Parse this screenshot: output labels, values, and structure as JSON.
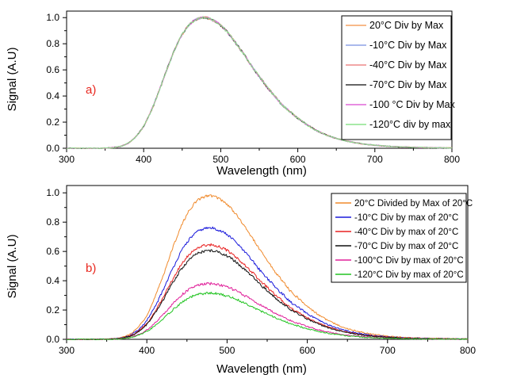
{
  "chart_data": [
    {
      "type": "line",
      "panel_label": "a)",
      "xlabel": "Wavelength (nm)",
      "ylabel": "Signal (A.U)",
      "xlim": [
        300,
        800
      ],
      "ylim": [
        0,
        1.05
      ],
      "xticks": [
        "300",
        "400",
        "500",
        "600",
        "700",
        "800"
      ],
      "yticks": [
        "0.0",
        "0.2",
        "0.4",
        "0.6",
        "0.8",
        "1.0"
      ],
      "grid": false,
      "legend_position": "top-right",
      "x": [
        300,
        340,
        360,
        370,
        380,
        390,
        400,
        410,
        420,
        430,
        440,
        450,
        460,
        470,
        480,
        490,
        500,
        510,
        520,
        530,
        540,
        550,
        560,
        570,
        580,
        590,
        600,
        620,
        640,
        660,
        680,
        700,
        720,
        740,
        760,
        780,
        800
      ],
      "series": [
        {
          "name": "20°C Div by Max",
          "color": "#f5a262",
          "values": [
            0,
            0,
            0.005,
            0.015,
            0.04,
            0.09,
            0.17,
            0.29,
            0.44,
            0.6,
            0.75,
            0.87,
            0.95,
            0.99,
            1.0,
            0.98,
            0.94,
            0.88,
            0.8,
            0.72,
            0.63,
            0.55,
            0.47,
            0.4,
            0.33,
            0.28,
            0.23,
            0.15,
            0.095,
            0.06,
            0.037,
            0.023,
            0.014,
            0.009,
            0.006,
            0.004,
            0.003
          ]
        },
        {
          "name": "-10°C Div by Max",
          "color": "#8ea2e6",
          "values": [
            0,
            0,
            0.005,
            0.015,
            0.04,
            0.09,
            0.17,
            0.29,
            0.44,
            0.6,
            0.75,
            0.87,
            0.95,
            0.99,
            1.0,
            0.98,
            0.94,
            0.88,
            0.8,
            0.72,
            0.63,
            0.55,
            0.47,
            0.4,
            0.33,
            0.28,
            0.23,
            0.15,
            0.095,
            0.06,
            0.037,
            0.023,
            0.014,
            0.009,
            0.006,
            0.004,
            0.003
          ]
        },
        {
          "name": "-40°C Div by Max",
          "color": "#ee8a8a",
          "values": [
            0,
            0,
            0.005,
            0.015,
            0.04,
            0.09,
            0.17,
            0.29,
            0.44,
            0.6,
            0.75,
            0.87,
            0.95,
            0.99,
            1.0,
            0.98,
            0.94,
            0.88,
            0.8,
            0.72,
            0.63,
            0.55,
            0.47,
            0.4,
            0.33,
            0.28,
            0.23,
            0.15,
            0.095,
            0.06,
            0.037,
            0.023,
            0.014,
            0.009,
            0.006,
            0.004,
            0.003
          ]
        },
        {
          "name": "-70°C Div by Max",
          "color": "#333333",
          "values": [
            0,
            0,
            0.005,
            0.015,
            0.04,
            0.09,
            0.17,
            0.29,
            0.44,
            0.6,
            0.75,
            0.87,
            0.95,
            0.99,
            1.0,
            0.98,
            0.94,
            0.88,
            0.8,
            0.72,
            0.63,
            0.55,
            0.47,
            0.4,
            0.33,
            0.28,
            0.23,
            0.15,
            0.095,
            0.06,
            0.037,
            0.023,
            0.014,
            0.009,
            0.006,
            0.004,
            0.003
          ]
        },
        {
          "name": "-100 °C Div by Max",
          "color": "#e066d8",
          "values": [
            0,
            0,
            0.005,
            0.015,
            0.04,
            0.09,
            0.17,
            0.29,
            0.44,
            0.6,
            0.75,
            0.87,
            0.95,
            0.99,
            1.0,
            0.98,
            0.94,
            0.88,
            0.8,
            0.72,
            0.63,
            0.55,
            0.47,
            0.4,
            0.33,
            0.28,
            0.23,
            0.15,
            0.095,
            0.06,
            0.037,
            0.023,
            0.014,
            0.009,
            0.006,
            0.004,
            0.003
          ]
        },
        {
          "name": "-120°C div by max",
          "color": "#8be38b",
          "values": [
            0,
            0,
            0.005,
            0.015,
            0.04,
            0.09,
            0.17,
            0.29,
            0.44,
            0.6,
            0.75,
            0.87,
            0.95,
            0.99,
            1.0,
            0.98,
            0.94,
            0.88,
            0.8,
            0.72,
            0.63,
            0.55,
            0.47,
            0.4,
            0.33,
            0.28,
            0.23,
            0.15,
            0.095,
            0.06,
            0.037,
            0.023,
            0.014,
            0.009,
            0.006,
            0.004,
            0.003
          ]
        }
      ]
    },
    {
      "type": "line",
      "panel_label": "b)",
      "xlabel": "Wavelength (nm)",
      "ylabel": "Signal (A.U)",
      "xlim": [
        300,
        800
      ],
      "ylim": [
        0,
        1.05
      ],
      "xticks": [
        "300",
        "400",
        "500",
        "600",
        "700",
        "800"
      ],
      "yticks": [
        "0.0",
        "0.2",
        "0.4",
        "0.6",
        "0.8",
        "1.0"
      ],
      "grid": false,
      "legend_position": "top-right",
      "x": [
        300,
        340,
        360,
        370,
        380,
        390,
        400,
        410,
        420,
        430,
        440,
        450,
        460,
        470,
        480,
        490,
        500,
        510,
        520,
        530,
        540,
        550,
        560,
        570,
        580,
        590,
        600,
        620,
        640,
        660,
        680,
        700,
        720,
        740,
        760,
        780,
        800
      ],
      "series": [
        {
          "name": "20°C Divided by Max of 20°C",
          "color": "#f08a2c",
          "scale": 0.98,
          "values": [
            0,
            0,
            0.005,
            0.015,
            0.04,
            0.09,
            0.17,
            0.29,
            0.44,
            0.6,
            0.75,
            0.87,
            0.95,
            0.99,
            1.0,
            0.98,
            0.94,
            0.88,
            0.8,
            0.72,
            0.63,
            0.55,
            0.47,
            0.4,
            0.33,
            0.28,
            0.23,
            0.15,
            0.095,
            0.06,
            0.037,
            0.023,
            0.014,
            0.009,
            0.006,
            0.004,
            0.003
          ]
        },
        {
          "name": "-10°C Div by max of 20°C",
          "color": "#1a1adb",
          "scale": 0.76,
          "values": [
            0,
            0,
            0.005,
            0.015,
            0.04,
            0.09,
            0.17,
            0.29,
            0.44,
            0.6,
            0.75,
            0.87,
            0.95,
            0.99,
            1.0,
            0.98,
            0.94,
            0.88,
            0.8,
            0.72,
            0.63,
            0.55,
            0.47,
            0.4,
            0.33,
            0.28,
            0.23,
            0.15,
            0.095,
            0.06,
            0.037,
            0.023,
            0.014,
            0.009,
            0.006,
            0.004,
            0.003
          ]
        },
        {
          "name": "-40°C Div by max of 20°C",
          "color": "#e82020",
          "scale": 0.645,
          "values": [
            0,
            0,
            0.005,
            0.015,
            0.04,
            0.09,
            0.17,
            0.29,
            0.44,
            0.6,
            0.75,
            0.87,
            0.95,
            0.99,
            1.0,
            0.98,
            0.94,
            0.88,
            0.8,
            0.72,
            0.63,
            0.55,
            0.47,
            0.4,
            0.33,
            0.28,
            0.23,
            0.15,
            0.095,
            0.06,
            0.037,
            0.023,
            0.014,
            0.009,
            0.006,
            0.004,
            0.003
          ]
        },
        {
          "name": "-70°C Div by max of 20°C",
          "color": "#111111",
          "scale": 0.605,
          "values": [
            0,
            0,
            0.005,
            0.015,
            0.04,
            0.09,
            0.17,
            0.29,
            0.44,
            0.6,
            0.75,
            0.87,
            0.95,
            0.99,
            1.0,
            0.98,
            0.94,
            0.88,
            0.8,
            0.72,
            0.63,
            0.55,
            0.47,
            0.4,
            0.33,
            0.28,
            0.23,
            0.15,
            0.095,
            0.06,
            0.037,
            0.023,
            0.014,
            0.009,
            0.006,
            0.004,
            0.003
          ]
        },
        {
          "name": "-100°C Div by max of 20°C",
          "color": "#e0209a",
          "scale": 0.38,
          "values": [
            0,
            0,
            0.005,
            0.015,
            0.04,
            0.09,
            0.17,
            0.29,
            0.44,
            0.6,
            0.75,
            0.87,
            0.95,
            0.99,
            1.0,
            0.98,
            0.94,
            0.88,
            0.8,
            0.72,
            0.63,
            0.55,
            0.47,
            0.4,
            0.33,
            0.28,
            0.23,
            0.15,
            0.095,
            0.06,
            0.037,
            0.023,
            0.014,
            0.009,
            0.006,
            0.004,
            0.003
          ]
        },
        {
          "name": "-120°C Div by max of 20°C",
          "color": "#22c422",
          "scale": 0.315,
          "values": [
            0,
            0,
            0.005,
            0.015,
            0.04,
            0.09,
            0.17,
            0.29,
            0.44,
            0.6,
            0.75,
            0.87,
            0.95,
            0.99,
            1.0,
            0.98,
            0.94,
            0.88,
            0.8,
            0.72,
            0.63,
            0.55,
            0.47,
            0.4,
            0.33,
            0.28,
            0.23,
            0.15,
            0.095,
            0.06,
            0.037,
            0.023,
            0.014,
            0.009,
            0.006,
            0.004,
            0.003
          ]
        }
      ]
    }
  ]
}
